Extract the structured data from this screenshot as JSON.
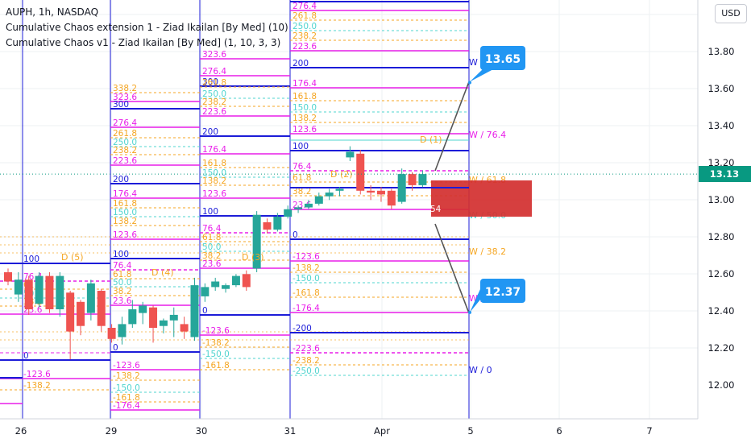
{
  "legend": {
    "symbol": "AUPH, 1h, NASDAQ",
    "study1": "Cumulative Chaos extension 1 - Ziad Ikailan [By Med] (10)",
    "study2": "Cumulative Chaos v1 - Ziad Ikailan [By Med] (1, 10, 3, 3)"
  },
  "currency_button": "USD",
  "colors": {
    "up": "#26a69a",
    "down": "#ef5350",
    "blue": "#1c1cd8",
    "magenta": "#e91ee9",
    "orange": "#f5a623",
    "teal": "#4fd4cf",
    "pink": "#e91e63",
    "callout": "#2196f3",
    "last_price": "#089981",
    "zone": "#d32f2f"
  },
  "chart_data": {
    "type": "candlestick",
    "y_axis": {
      "ticks": [
        "13.80",
        "13.60",
        "13.40",
        "13.20",
        "13.00",
        "12.80",
        "12.60",
        "12.40",
        "12.20",
        "12.00"
      ]
    },
    "x_axis": {
      "ticks": [
        "26",
        "29",
        "30",
        "31",
        "Apr",
        "5",
        "6",
        "7"
      ]
    },
    "last_price": "13.13",
    "candles": [
      {
        "o": 12.6,
        "h": 12.62,
        "c": 12.55,
        "l": 12.53
      },
      {
        "o": 12.48,
        "h": 12.6,
        "c": 12.56,
        "l": 12.44
      },
      {
        "o": 12.56,
        "h": 12.58,
        "c": 12.4,
        "l": 12.37
      },
      {
        "o": 12.43,
        "h": 12.6,
        "c": 12.58,
        "l": 12.41
      },
      {
        "o": 12.58,
        "h": 12.6,
        "c": 12.4,
        "l": 12.38
      },
      {
        "o": 12.4,
        "h": 12.6,
        "c": 12.58,
        "l": 12.36
      },
      {
        "o": 12.49,
        "h": 12.5,
        "c": 12.28,
        "l": 12.13
      },
      {
        "o": 12.44,
        "h": 12.45,
        "c": 12.31,
        "l": 12.26
      },
      {
        "o": 12.38,
        "h": 12.56,
        "c": 12.54,
        "l": 12.34
      },
      {
        "o": 12.5,
        "h": 12.51,
        "c": 12.31,
        "l": 12.28
      },
      {
        "o": 12.3,
        "h": 12.32,
        "c": 12.24,
        "l": 12.22
      },
      {
        "o": 12.25,
        "h": 12.36,
        "c": 12.32,
        "l": 12.21
      },
      {
        "o": 12.32,
        "h": 12.45,
        "c": 12.4,
        "l": 12.3
      },
      {
        "o": 12.38,
        "h": 12.44,
        "c": 12.42,
        "l": 12.32
      },
      {
        "o": 12.41,
        "h": 12.42,
        "c": 12.3,
        "l": 12.22
      },
      {
        "o": 12.31,
        "h": 12.35,
        "c": 12.34,
        "l": 12.27
      },
      {
        "o": 12.34,
        "h": 12.41,
        "c": 12.37,
        "l": 12.25
      },
      {
        "o": 12.32,
        "h": 12.36,
        "c": 12.28,
        "l": 12.24
      },
      {
        "o": 12.25,
        "h": 12.57,
        "c": 12.53,
        "l": 12.23
      },
      {
        "o": 12.47,
        "h": 12.54,
        "c": 12.52,
        "l": 12.44
      },
      {
        "o": 12.52,
        "h": 12.57,
        "c": 12.55,
        "l": 12.5
      },
      {
        "o": 12.51,
        "h": 12.54,
        "c": 12.53,
        "l": 12.49
      },
      {
        "o": 12.53,
        "h": 12.59,
        "c": 12.58,
        "l": 12.52
      },
      {
        "o": 12.59,
        "h": 12.61,
        "c": 12.52,
        "l": 12.5
      },
      {
        "o": 12.62,
        "h": 12.93,
        "c": 12.91,
        "l": 12.6
      },
      {
        "o": 12.87,
        "h": 12.89,
        "c": 12.83,
        "l": 12.81
      },
      {
        "o": 12.83,
        "h": 12.92,
        "c": 12.9,
        "l": 12.82
      },
      {
        "o": 12.9,
        "h": 12.96,
        "c": 12.94,
        "l": 12.89
      },
      {
        "o": 12.94,
        "h": 12.96,
        "c": 12.95,
        "l": 12.92
      },
      {
        "o": 12.95,
        "h": 12.99,
        "c": 12.97,
        "l": 12.94
      },
      {
        "o": 12.97,
        "h": 13.03,
        "c": 13.01,
        "l": 12.96
      },
      {
        "o": 13.01,
        "h": 13.05,
        "c": 13.03,
        "l": 12.99
      },
      {
        "o": 13.04,
        "h": 13.06,
        "c": 13.05,
        "l": 13.01
      },
      {
        "o": 13.22,
        "h": 13.28,
        "c": 13.25,
        "l": 13.2
      },
      {
        "o": 13.24,
        "h": 13.26,
        "c": 13.04,
        "l": 13.02
      },
      {
        "o": 13.04,
        "h": 13.07,
        "c": 13.03,
        "l": 12.99
      },
      {
        "o": 13.04,
        "h": 13.06,
        "c": 13.02,
        "l": 12.98
      },
      {
        "o": 13.04,
        "h": 13.05,
        "c": 12.96,
        "l": 12.94
      },
      {
        "o": 12.98,
        "h": 13.16,
        "c": 13.13,
        "l": 12.97
      },
      {
        "o": 13.13,
        "h": 13.14,
        "c": 13.07,
        "l": 13.04
      },
      {
        "o": 13.07,
        "h": 13.15,
        "c": 13.13,
        "l": 13.06
      }
    ],
    "markers": [
      "D (5)",
      "D (4)",
      "D (3)",
      "D (2)",
      "D (1)"
    ],
    "level_blocks": [
      [
        {
          "label": "100",
          "color": "blue"
        },
        {
          "label": "76.4",
          "color": "magenta"
        },
        {
          "label": "61.8",
          "color": "orange"
        },
        {
          "label": "50.0",
          "color": "teal"
        },
        {
          "label": "38.2",
          "color": "orange"
        },
        {
          "label": "23.6",
          "color": "magenta"
        },
        {
          "label": "0",
          "color": "blue"
        },
        {
          "label": "-123.6",
          "color": "magenta"
        },
        {
          "label": "-138.2",
          "color": "orange"
        }
      ],
      [
        {
          "label": "338.2",
          "color": "orange"
        },
        {
          "label": "323.6",
          "color": "magenta"
        },
        {
          "label": "300",
          "color": "blue"
        },
        {
          "label": "276.4",
          "color": "magenta"
        },
        {
          "label": "261.8",
          "color": "orange"
        },
        {
          "label": "250.0",
          "color": "teal"
        },
        {
          "label": "238.2",
          "color": "orange"
        },
        {
          "label": "223.6",
          "color": "magenta"
        },
        {
          "label": "200",
          "color": "blue"
        },
        {
          "label": "176.4",
          "color": "magenta"
        },
        {
          "label": "161.8",
          "color": "orange"
        },
        {
          "label": "150.0",
          "color": "teal"
        },
        {
          "label": "138.2",
          "color": "orange"
        },
        {
          "label": "123.6",
          "color": "magenta"
        },
        {
          "label": "100",
          "color": "blue"
        },
        {
          "label": "76.4",
          "color": "magenta"
        },
        {
          "label": "61.8",
          "color": "orange"
        },
        {
          "label": "50.0",
          "color": "teal"
        },
        {
          "label": "38.2",
          "color": "orange"
        },
        {
          "label": "23.6",
          "color": "magenta"
        },
        {
          "label": "0",
          "color": "blue"
        },
        {
          "label": "-123.6",
          "color": "magenta"
        },
        {
          "label": "-138.2",
          "color": "orange"
        },
        {
          "label": "-150.0",
          "color": "teal"
        },
        {
          "label": "-161.8",
          "color": "orange"
        },
        {
          "label": "-176.4",
          "color": "magenta"
        }
      ],
      [
        {
          "label": "323.6",
          "color": "magenta"
        },
        {
          "label": "300",
          "color": "blue"
        },
        {
          "label": "276.4",
          "color": "magenta"
        },
        {
          "label": "261.8",
          "color": "orange"
        },
        {
          "label": "250.0",
          "color": "teal"
        },
        {
          "label": "238.2",
          "color": "orange"
        },
        {
          "label": "223.6",
          "color": "magenta"
        },
        {
          "label": "200",
          "color": "blue"
        },
        {
          "label": "176.4",
          "color": "magenta"
        },
        {
          "label": "161.8",
          "color": "orange"
        },
        {
          "label": "150.0",
          "color": "teal"
        },
        {
          "label": "138.2",
          "color": "orange"
        },
        {
          "label": "123.6",
          "color": "magenta"
        },
        {
          "label": "100",
          "color": "blue"
        },
        {
          "label": "76.4",
          "color": "magenta"
        },
        {
          "label": "61.8",
          "color": "orange"
        },
        {
          "label": "50.0",
          "color": "teal"
        },
        {
          "label": "38.2",
          "color": "orange"
        },
        {
          "label": "23.6",
          "color": "magenta"
        },
        {
          "label": "0",
          "color": "blue"
        },
        {
          "label": "-123.6",
          "color": "magenta"
        },
        {
          "label": "-138.2",
          "color": "orange"
        },
        {
          "label": "-150.0",
          "color": "teal"
        },
        {
          "label": "-161.8",
          "color": "orange"
        }
      ],
      [
        {
          "label": "276.4",
          "color": "magenta"
        },
        {
          "label": "261.8",
          "color": "orange"
        },
        {
          "label": "250.0",
          "color": "teal"
        },
        {
          "label": "238.2",
          "color": "orange"
        },
        {
          "label": "223.6",
          "color": "magenta"
        },
        {
          "label": "200",
          "color": "blue"
        },
        {
          "label": "176.4",
          "color": "magenta"
        },
        {
          "label": "161.8",
          "color": "orange"
        },
        {
          "label": "150.0",
          "color": "teal"
        },
        {
          "label": "138.2",
          "color": "orange"
        },
        {
          "label": "123.6",
          "color": "magenta"
        },
        {
          "label": "100",
          "color": "blue"
        },
        {
          "label": "76.4",
          "color": "magenta"
        },
        {
          "label": "61.8",
          "color": "orange"
        },
        {
          "label": "38.2",
          "color": "orange"
        },
        {
          "label": "23.6",
          "color": "magenta"
        },
        {
          "label": "0",
          "color": "blue"
        },
        {
          "label": "-123.6",
          "color": "magenta"
        },
        {
          "label": "-138.2",
          "color": "orange"
        },
        {
          "label": "-150.0",
          "color": "teal"
        },
        {
          "label": "-161.8",
          "color": "orange"
        },
        {
          "label": "-176.4",
          "color": "magenta"
        },
        {
          "label": "-200",
          "color": "blue"
        },
        {
          "label": "-223.6",
          "color": "magenta"
        },
        {
          "label": "-238.2",
          "color": "orange"
        },
        {
          "label": "-250.0",
          "color": "teal"
        }
      ]
    ],
    "inline_label": "54",
    "projection_labels": [
      {
        "label": "W / 100",
        "color": "blue"
      },
      {
        "label": "W / 76.4",
        "color": "magenta"
      },
      {
        "label": "W / 61.8",
        "color": "orange"
      },
      {
        "label": "W / 50.0",
        "color": "teal"
      },
      {
        "label": "W / 38.2",
        "color": "orange"
      },
      {
        "label": "W / 23.6",
        "color": "magenta"
      },
      {
        "label": "W / 0",
        "color": "blue"
      }
    ],
    "callouts": [
      {
        "label": "13.65",
        "value": 13.65
      },
      {
        "label": "12.37",
        "value": 12.37
      }
    ]
  }
}
